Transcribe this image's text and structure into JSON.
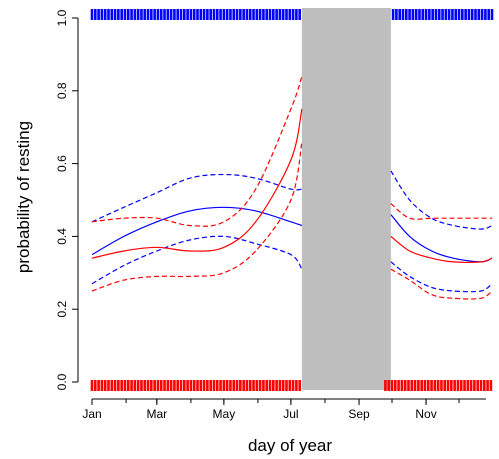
{
  "chart_data": {
    "type": "line",
    "xlabel": "day of year",
    "ylabel": "probability of resting",
    "xlim": [
      1,
      365
    ],
    "ylim": [
      0,
      1
    ],
    "x_ticks": [
      {
        "label": "Jan",
        "day": 1
      },
      {
        "label": "Mar",
        "day": 60
      },
      {
        "label": "May",
        "day": 121
      },
      {
        "label": "Jul",
        "day": 182
      },
      {
        "label": "Sep",
        "day": 244
      },
      {
        "label": "Nov",
        "day": 305
      }
    ],
    "y_ticks": [
      {
        "label": "0.0",
        "value": 0.0
      },
      {
        "label": "0.2",
        "value": 0.2
      },
      {
        "label": "0.4",
        "value": 0.4
      },
      {
        "label": "0.6",
        "value": 0.6
      },
      {
        "label": "0.8",
        "value": 0.8
      },
      {
        "label": "1.0",
        "value": 1.0
      }
    ],
    "shaded_region": {
      "x_start": 192,
      "x_end": 273,
      "color": "#bebebe"
    },
    "colors": {
      "red": "#ff0000",
      "blue": "#0000ff",
      "shade": "#bebebe"
    },
    "series": [
      {
        "color": "blue",
        "style": "solid",
        "segments": [
          {
            "x": [
              1,
              30,
              60,
              90,
              121,
              150,
              182,
              192
            ],
            "y": [
              0.35,
              0.4,
              0.44,
              0.47,
              0.48,
              0.47,
              0.44,
              0.43
            ]
          },
          {
            "x": [
              273,
              290,
              310,
              330,
              355,
              365
            ],
            "y": [
              0.46,
              0.4,
              0.36,
              0.34,
              0.33,
              0.34
            ]
          }
        ]
      },
      {
        "color": "blue",
        "style": "dashed",
        "segments": [
          {
            "x": [
              1,
              30,
              60,
              90,
              121,
              150,
              182,
              192
            ],
            "y": [
              0.44,
              0.48,
              0.52,
              0.56,
              0.57,
              0.56,
              0.53,
              0.53
            ]
          },
          {
            "x": [
              273,
              290,
              310,
              330,
              355,
              365
            ],
            "y": [
              0.58,
              0.5,
              0.45,
              0.43,
              0.42,
              0.43
            ]
          }
        ]
      },
      {
        "color": "blue",
        "style": "dashed",
        "segments": [
          {
            "x": [
              1,
              30,
              60,
              90,
              121,
              150,
              182,
              192
            ],
            "y": [
              0.27,
              0.32,
              0.36,
              0.39,
              0.4,
              0.38,
              0.35,
              0.31
            ]
          },
          {
            "x": [
              273,
              290,
              310,
              330,
              355,
              365
            ],
            "y": [
              0.33,
              0.29,
              0.26,
              0.25,
              0.25,
              0.27
            ]
          }
        ]
      },
      {
        "color": "red",
        "style": "solid",
        "segments": [
          {
            "x": [
              1,
              30,
              60,
              90,
              121,
              150,
              182,
              192
            ],
            "y": [
              0.34,
              0.36,
              0.37,
              0.36,
              0.37,
              0.44,
              0.61,
              0.75
            ]
          },
          {
            "x": [
              273,
              290,
              310,
              330,
              355,
              365
            ],
            "y": [
              0.4,
              0.36,
              0.34,
              0.33,
              0.33,
              0.34
            ]
          }
        ]
      },
      {
        "color": "red",
        "style": "dashed",
        "segments": [
          {
            "x": [
              1,
              30,
              60,
              90,
              121,
              150,
              182,
              192
            ],
            "y": [
              0.44,
              0.45,
              0.45,
              0.43,
              0.44,
              0.53,
              0.75,
              0.84
            ]
          },
          {
            "x": [
              273,
              290,
              310,
              330,
              355,
              365
            ],
            "y": [
              0.49,
              0.45,
              0.45,
              0.45,
              0.45,
              0.45
            ]
          }
        ]
      },
      {
        "color": "red",
        "style": "dashed",
        "segments": [
          {
            "x": [
              1,
              30,
              60,
              90,
              121,
              150,
              182,
              192
            ],
            "y": [
              0.25,
              0.28,
              0.29,
              0.29,
              0.3,
              0.36,
              0.5,
              0.66
            ]
          },
          {
            "x": [
              273,
              290,
              310,
              330,
              355,
              365
            ],
            "y": [
              0.31,
              0.28,
              0.24,
              0.23,
              0.23,
              0.25
            ]
          }
        ]
      }
    ],
    "rug_top": {
      "color": "blue",
      "y": 1.0,
      "x": [
        1,
        4,
        7,
        10,
        13,
        16,
        19,
        22,
        25,
        28,
        31,
        34,
        37,
        40,
        43,
        46,
        49,
        52,
        55,
        58,
        61,
        64,
        67,
        70,
        73,
        76,
        79,
        82,
        85,
        88,
        91,
        94,
        97,
        100,
        103,
        106,
        109,
        112,
        115,
        118,
        121,
        124,
        127,
        130,
        133,
        136,
        139,
        142,
        145,
        148,
        151,
        154,
        157,
        160,
        163,
        166,
        169,
        172,
        175,
        178,
        181,
        184,
        187,
        190,
        275,
        278,
        281,
        284,
        287,
        290,
        293,
        296,
        299,
        302,
        305,
        308,
        311,
        314,
        317,
        320,
        323,
        326,
        329,
        332,
        335,
        338,
        341,
        344,
        347,
        350,
        353,
        356,
        359,
        362,
        365
      ]
    },
    "rug_bottom": {
      "color": "red",
      "y": 0.0,
      "x": [
        1,
        4,
        7,
        10,
        13,
        16,
        19,
        22,
        25,
        28,
        31,
        34,
        37,
        40,
        43,
        46,
        49,
        52,
        55,
        58,
        61,
        64,
        67,
        70,
        73,
        76,
        79,
        82,
        85,
        88,
        91,
        94,
        97,
        100,
        103,
        106,
        109,
        112,
        115,
        118,
        121,
        124,
        127,
        130,
        133,
        136,
        139,
        142,
        145,
        148,
        151,
        154,
        157,
        160,
        163,
        166,
        169,
        172,
        175,
        178,
        181,
        184,
        187,
        190,
        268,
        271,
        274,
        277,
        280,
        283,
        286,
        289,
        292,
        295,
        298,
        301,
        304,
        307,
        310,
        313,
        316,
        319,
        322,
        325,
        328,
        331,
        334,
        337,
        340,
        343,
        346,
        349,
        352,
        355,
        358,
        361,
        364
      ]
    }
  }
}
